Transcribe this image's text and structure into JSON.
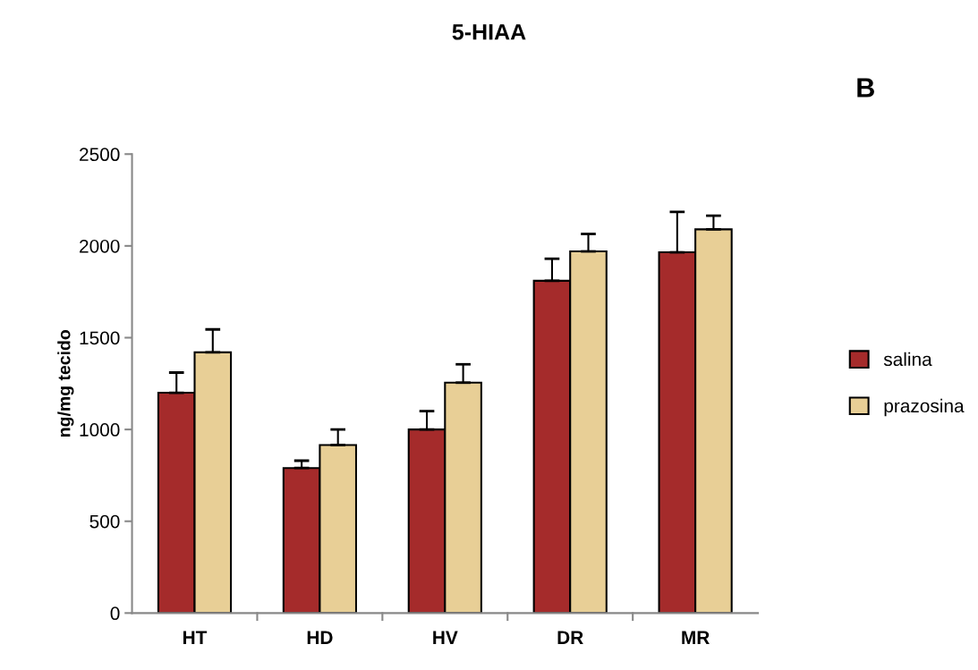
{
  "chart_data": {
    "type": "bar",
    "title": "5-HIAA",
    "ylabel": "ng/mg tecido",
    "annotations": [
      "B"
    ],
    "categories": [
      "HT",
      "HD",
      "HV",
      "DR",
      "MR"
    ],
    "series": [
      {
        "name": "salina",
        "color": "#a52b2b",
        "values": [
          1200,
          790,
          1000,
          1810,
          1965
        ],
        "errors": [
          [
            1200,
            1310
          ],
          [
            790,
            830
          ],
          [
            1000,
            1100
          ],
          [
            1810,
            1930
          ],
          [
            1965,
            2185
          ]
        ]
      },
      {
        "name": "prazosina",
        "color": "#e8cf96",
        "values": [
          1420,
          915,
          1255,
          1970,
          2090
        ],
        "errors": [
          [
            1420,
            1545
          ],
          [
            915,
            1000
          ],
          [
            1255,
            1355
          ],
          [
            1970,
            2065
          ],
          [
            2090,
            2165
          ]
        ]
      }
    ],
    "ylim": [
      0,
      2500
    ],
    "yticks": [
      0,
      500,
      1000,
      1500,
      2000,
      2500
    ],
    "grid": false,
    "legend": "right"
  }
}
